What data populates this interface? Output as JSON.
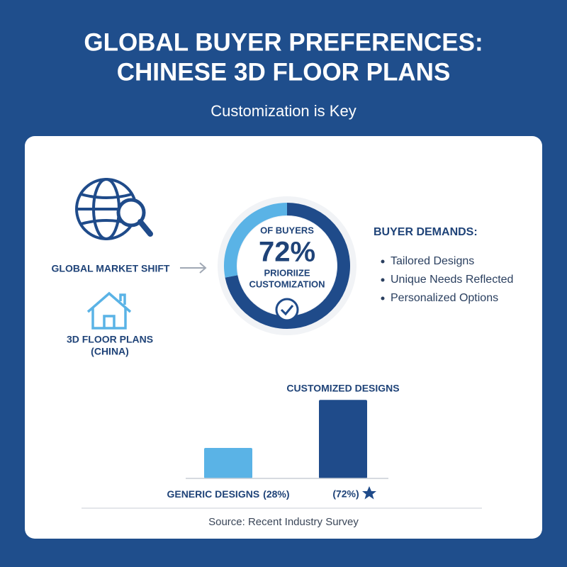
{
  "header": {
    "title_lines": [
      "GLOBAL BUYER PREFERENCES:",
      "CHINESE 3D FLOOR PLANS"
    ],
    "subtitle": "Customization is Key"
  },
  "left": {
    "market": "GLOBAL MARKET SHIFT",
    "plans_lines": [
      "3D FLOOR PLANS",
      "(CHINA)"
    ]
  },
  "demands": {
    "title": "BUYER DEMANDS:",
    "items": [
      "Tailored Designs",
      "Unique Needs Reflected",
      "Personalized Options"
    ]
  },
  "source": "Source: Recent Industry Survey",
  "chart_data": [
    {
      "type": "donut",
      "top_label": "OF BUYERS",
      "bottom_lines": [
        "PRIORIIZE",
        "CUSTOMIZATION"
      ],
      "values": [
        72,
        28
      ],
      "value_labels": [
        "72%",
        null
      ],
      "colors": [
        "#1f4b8a",
        "#5ab3e6"
      ]
    },
    {
      "type": "bar",
      "categories": [
        "GENERIC DESIGNS",
        "CUSTOMIZED DESIGNS"
      ],
      "values": [
        28,
        72
      ],
      "value_labels": [
        "(28%)",
        "(72%)"
      ],
      "colors": [
        "#5ab3e6",
        "#1f4b8a"
      ],
      "ylim": [
        0,
        80
      ]
    }
  ]
}
